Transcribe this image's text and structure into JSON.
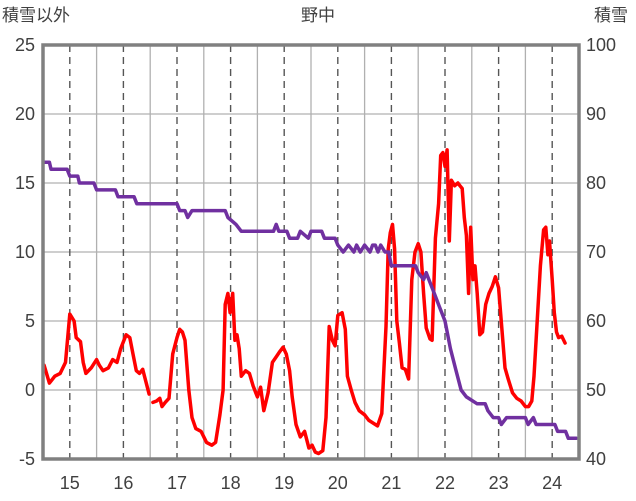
{
  "chart_data": {
    "type": "line",
    "title": "野中",
    "y_left_label": "積雪以外",
    "y_right_label": "積雪",
    "x_tick_labels": [
      "15",
      "16",
      "17",
      "18",
      "19",
      "20",
      "21",
      "22",
      "23",
      "24"
    ],
    "xlim": [
      14.5,
      24.5
    ],
    "ylim_left": [
      -5,
      25
    ],
    "ylim_right": [
      40,
      100
    ],
    "y_left_ticks": [
      -5,
      0,
      5,
      10,
      15,
      20,
      25
    ],
    "y_right_ticks": [
      40,
      50,
      60,
      70,
      80,
      90,
      100
    ],
    "grid": {
      "horizontal": "solid",
      "vertical": "dashed"
    },
    "series": [
      {
        "axis": "left",
        "color": "#ff0000",
        "segments": [
          [
            [
              14.52,
              1.8
            ],
            [
              14.62,
              0.5
            ],
            [
              14.72,
              1.0
            ],
            [
              14.82,
              1.2
            ],
            [
              14.92,
              2.0
            ],
            [
              15.0,
              5.5
            ],
            [
              15.08,
              5.0
            ],
            [
              15.12,
              3.8
            ],
            [
              15.2,
              3.5
            ],
            [
              15.25,
              2.0
            ],
            [
              15.3,
              1.2
            ],
            [
              15.4,
              1.6
            ],
            [
              15.5,
              2.2
            ],
            [
              15.55,
              1.8
            ],
            [
              15.62,
              1.4
            ],
            [
              15.72,
              1.6
            ],
            [
              15.8,
              2.2
            ],
            [
              15.88,
              2.0
            ],
            [
              15.95,
              3.0
            ],
            [
              16.05,
              4.0
            ],
            [
              16.12,
              3.8
            ],
            [
              16.18,
              2.6
            ],
            [
              16.24,
              1.4
            ],
            [
              16.3,
              1.2
            ],
            [
              16.36,
              1.5
            ],
            [
              16.42,
              0.6
            ],
            [
              16.48,
              -0.3
            ]
          ],
          [
            [
              16.55,
              -0.9
            ],
            [
              16.62,
              -0.8
            ],
            [
              16.68,
              -0.6
            ],
            [
              16.72,
              -1.2
            ],
            [
              16.78,
              -0.9
            ],
            [
              16.85,
              -0.6
            ],
            [
              16.92,
              2.6
            ],
            [
              17.0,
              3.8
            ],
            [
              17.05,
              4.4
            ],
            [
              17.1,
              4.2
            ],
            [
              17.15,
              3.6
            ],
            [
              17.22,
              0.0
            ],
            [
              17.28,
              -2.0
            ],
            [
              17.35,
              -2.8
            ],
            [
              17.45,
              -3.0
            ],
            [
              17.55,
              -3.8
            ],
            [
              17.65,
              -4.0
            ],
            [
              17.72,
              -3.8
            ],
            [
              17.8,
              -1.8
            ],
            [
              17.86,
              0.0
            ],
            [
              17.9,
              6.2
            ],
            [
              17.95,
              7.0
            ],
            [
              17.99,
              5.6
            ],
            [
              18.04,
              7.0
            ],
            [
              18.08,
              3.6
            ],
            [
              18.12,
              4.0
            ],
            [
              18.16,
              3.0
            ],
            [
              18.2,
              1.0
            ],
            [
              18.28,
              1.4
            ],
            [
              18.35,
              1.2
            ],
            [
              18.42,
              0.3
            ],
            [
              18.5,
              -0.5
            ],
            [
              18.56,
              0.2
            ],
            [
              18.62,
              -1.5
            ],
            [
              18.7,
              -0.2
            ],
            [
              18.78,
              2.0
            ],
            [
              18.85,
              2.4
            ],
            [
              18.92,
              2.8
            ],
            [
              18.98,
              3.1
            ],
            [
              19.04,
              2.6
            ],
            [
              19.1,
              1.4
            ],
            [
              19.15,
              -0.5
            ],
            [
              19.22,
              -2.5
            ],
            [
              19.3,
              -3.4
            ],
            [
              19.38,
              -3.0
            ],
            [
              19.46,
              -4.2
            ],
            [
              19.52,
              -4.0
            ],
            [
              19.58,
              -4.5
            ],
            [
              19.64,
              -4.6
            ],
            [
              19.72,
              -4.4
            ],
            [
              19.78,
              -2.0
            ],
            [
              19.84,
              4.6
            ],
            [
              19.9,
              3.6
            ],
            [
              19.95,
              3.2
            ],
            [
              20.0,
              5.4
            ],
            [
              20.08,
              5.6
            ],
            [
              20.14,
              4.4
            ],
            [
              20.18,
              1.0
            ],
            [
              20.25,
              0.0
            ],
            [
              20.32,
              -0.9
            ],
            [
              20.4,
              -1.5
            ],
            [
              20.5,
              -1.8
            ],
            [
              20.58,
              -2.2
            ],
            [
              20.66,
              -2.4
            ],
            [
              20.74,
              -2.6
            ],
            [
              20.82,
              -1.7
            ],
            [
              20.86,
              1.5
            ],
            [
              20.9,
              4.6
            ],
            [
              20.94,
              10.2
            ],
            [
              20.98,
              11.4
            ],
            [
              21.02,
              12.0
            ],
            [
              21.06,
              10.2
            ],
            [
              21.1,
              5.0
            ],
            [
              21.15,
              3.4
            ],
            [
              21.2,
              1.6
            ],
            [
              21.26,
              1.5
            ],
            [
              21.32,
              0.8
            ],
            [
              21.38,
              8.0
            ],
            [
              21.44,
              10.0
            ],
            [
              21.5,
              10.6
            ],
            [
              21.55,
              10.0
            ],
            [
              21.6,
              7.0
            ],
            [
              21.65,
              4.5
            ],
            [
              21.72,
              3.7
            ],
            [
              21.76,
              3.6
            ],
            [
              21.82,
              11.0
            ],
            [
              21.88,
              13.5
            ],
            [
              21.92,
              17.0
            ],
            [
              21.96,
              17.2
            ],
            [
              22.0,
              16.2
            ],
            [
              22.04,
              17.4
            ],
            [
              22.08,
              10.8
            ],
            [
              22.12,
              15.2
            ],
            [
              22.18,
              14.8
            ],
            [
              22.24,
              15.0
            ],
            [
              22.28,
              14.8
            ],
            [
              22.32,
              14.6
            ],
            [
              22.36,
              12.5
            ],
            [
              22.4,
              11.2
            ],
            [
              22.44,
              7.0
            ],
            [
              22.48,
              11.8
            ],
            [
              22.52,
              8.0
            ],
            [
              22.56,
              9.0
            ],
            [
              22.6,
              7.0
            ],
            [
              22.65,
              4.0
            ],
            [
              22.7,
              4.2
            ],
            [
              22.76,
              6.2
            ],
            [
              22.82,
              7.0
            ],
            [
              22.88,
              7.5
            ],
            [
              22.94,
              8.2
            ],
            [
              23.0,
              7.4
            ],
            [
              23.06,
              4.5
            ],
            [
              23.12,
              1.6
            ],
            [
              23.18,
              0.8
            ],
            [
              23.26,
              -0.2
            ],
            [
              23.34,
              -0.6
            ],
            [
              23.42,
              -0.8
            ],
            [
              23.5,
              -1.2
            ],
            [
              23.56,
              -1.2
            ],
            [
              23.62,
              -0.8
            ],
            [
              23.66,
              1.0
            ],
            [
              23.72,
              5.0
            ],
            [
              23.78,
              9.0
            ],
            [
              23.84,
              11.6
            ],
            [
              23.88,
              11.8
            ],
            [
              23.92,
              9.8
            ],
            [
              23.95,
              10.8
            ],
            [
              24.0,
              8.0
            ],
            [
              24.04,
              5.6
            ],
            [
              24.08,
              4.2
            ],
            [
              24.12,
              3.8
            ],
            [
              24.18,
              3.9
            ],
            [
              24.24,
              3.4
            ]
          ]
        ]
      },
      {
        "axis": "right",
        "color": "#7030a0",
        "segments": [
          [
            [
              14.52,
              83
            ],
            [
              14.62,
              83
            ],
            [
              14.65,
              82
            ],
            [
              14.95,
              82
            ],
            [
              15.0,
              81
            ],
            [
              15.15,
              81
            ],
            [
              15.18,
              80
            ],
            [
              15.45,
              80
            ],
            [
              15.5,
              79
            ],
            [
              15.85,
              79
            ],
            [
              15.9,
              78
            ],
            [
              16.2,
              78
            ],
            [
              16.25,
              77
            ],
            [
              16.5,
              77
            ],
            [
              16.55,
              77
            ],
            [
              17.0,
              77
            ],
            [
              17.05,
              76
            ],
            [
              17.15,
              76
            ],
            [
              17.2,
              75
            ],
            [
              17.28,
              76
            ],
            [
              17.9,
              76
            ],
            [
              17.95,
              75
            ],
            [
              18.1,
              74
            ],
            [
              18.2,
              73
            ],
            [
              18.8,
              73
            ],
            [
              18.85,
              74
            ],
            [
              18.9,
              73
            ],
            [
              19.05,
              73
            ],
            [
              19.1,
              72
            ],
            [
              19.25,
              72
            ],
            [
              19.3,
              73
            ],
            [
              19.45,
              72
            ],
            [
              19.5,
              73
            ],
            [
              19.7,
              73
            ],
            [
              19.75,
              72
            ],
            [
              19.95,
              72
            ],
            [
              20.0,
              71
            ],
            [
              20.1,
              70
            ],
            [
              20.2,
              71
            ],
            [
              20.3,
              70
            ],
            [
              20.35,
              71
            ],
            [
              20.42,
              70
            ],
            [
              20.5,
              71
            ],
            [
              20.6,
              70
            ],
            [
              20.65,
              71
            ],
            [
              20.7,
              71
            ],
            [
              20.75,
              70
            ],
            [
              20.8,
              71
            ],
            [
              20.88,
              70
            ],
            [
              20.95,
              70
            ],
            [
              21.0,
              68
            ],
            [
              21.35,
              68
            ],
            [
              21.45,
              68
            ],
            [
              21.5,
              67
            ],
            [
              21.6,
              66
            ],
            [
              21.65,
              67
            ],
            [
              21.7,
              66
            ],
            [
              21.8,
              64
            ],
            [
              21.9,
              62
            ],
            [
              22.0,
              60
            ],
            [
              22.1,
              56
            ],
            [
              22.2,
              53
            ],
            [
              22.3,
              50
            ],
            [
              22.4,
              49
            ],
            [
              22.6,
              48
            ],
            [
              22.75,
              48
            ],
            [
              22.8,
              47
            ],
            [
              22.9,
              46
            ],
            [
              23.0,
              46
            ],
            [
              23.05,
              45
            ],
            [
              23.15,
              46
            ],
            [
              23.5,
              46
            ],
            [
              23.55,
              45
            ],
            [
              23.65,
              46
            ],
            [
              23.7,
              45
            ],
            [
              24.05,
              45
            ],
            [
              24.1,
              44
            ],
            [
              24.25,
              44
            ],
            [
              24.3,
              43
            ],
            [
              24.45,
              43
            ]
          ]
        ]
      }
    ]
  }
}
